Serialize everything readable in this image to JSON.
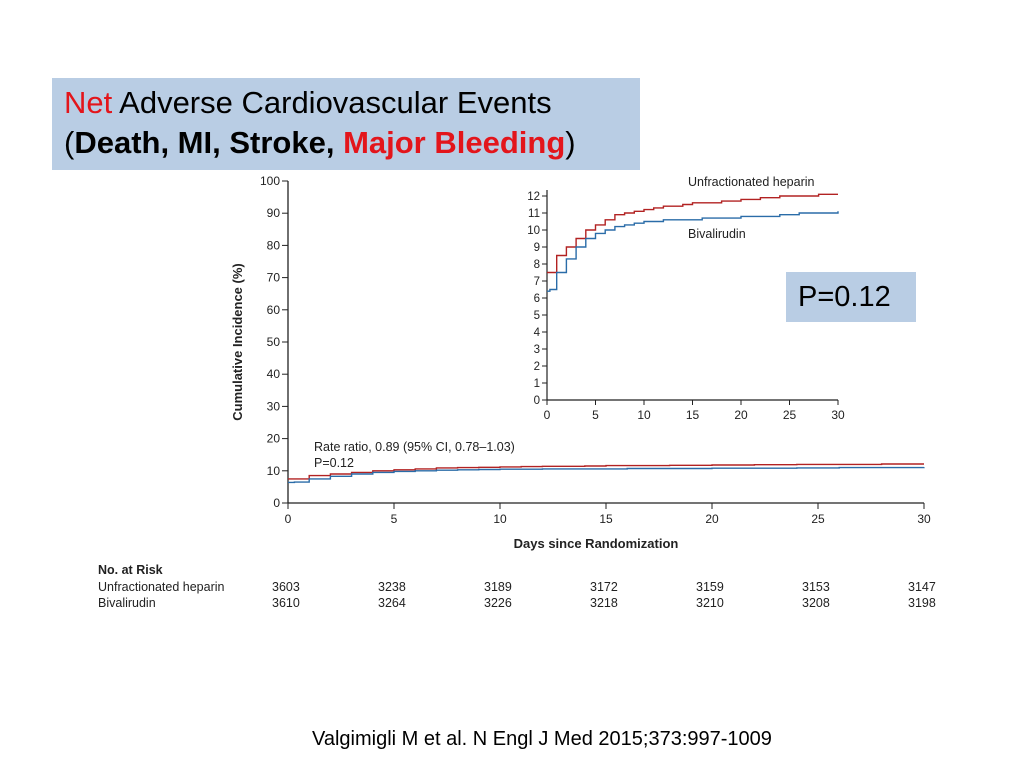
{
  "title": {
    "line1_red": "Net",
    "line1_rest": " Adverse Cardiovascular Events",
    "line2_open": "(",
    "line2_bold": "Death, MI, Stroke, ",
    "line2_red": "Major Bleeding",
    "line2_close": ")"
  },
  "pvalue_box": "P=0.12",
  "citation": "Valgimigli M et al. N Engl J Med 2015;373:997-1009",
  "colors": {
    "heparin": "#b22222",
    "bivalirudin": "#2a6ca8",
    "highlight_box": "#b9cde4",
    "title_red": "#e3151b"
  },
  "chart_data": [
    {
      "type": "line",
      "step": true,
      "xlabel": "Days since Randomization",
      "ylabel": "Cumulative Incidence (%)",
      "xlim": [
        0,
        30
      ],
      "ylim": [
        0,
        100
      ],
      "xticks": [
        0,
        5,
        10,
        15,
        20,
        25,
        30
      ],
      "yticks": [
        0,
        10,
        20,
        30,
        40,
        50,
        60,
        70,
        80,
        90,
        100
      ],
      "annotation": [
        "Rate ratio, 0.89 (95% CI, 0.78–1.03)",
        "P=0.12"
      ],
      "series": [
        {
          "name": "Unfractionated heparin",
          "color": "#b22222",
          "x": [
            0,
            0.2,
            1,
            2,
            3,
            4,
            5,
            6,
            7,
            8,
            9,
            10,
            11,
            12,
            13,
            14,
            15,
            16,
            18,
            20,
            22,
            24,
            26,
            28,
            30
          ],
          "y": [
            7.5,
            7.5,
            8.5,
            9.0,
            9.5,
            10.0,
            10.3,
            10.6,
            10.9,
            11.0,
            11.1,
            11.2,
            11.3,
            11.4,
            11.4,
            11.5,
            11.6,
            11.6,
            11.7,
            11.8,
            11.9,
            12.0,
            12.0,
            12.1,
            12.1
          ]
        },
        {
          "name": "Bivalirudin",
          "color": "#2a6ca8",
          "x": [
            0,
            0.3,
            1,
            2,
            3,
            4,
            5,
            6,
            7,
            8,
            9,
            10,
            12,
            14,
            16,
            18,
            20,
            22,
            24,
            26,
            28,
            30
          ],
          "y": [
            6.4,
            6.5,
            7.5,
            8.3,
            9.0,
            9.5,
            9.8,
            10.0,
            10.2,
            10.3,
            10.4,
            10.5,
            10.6,
            10.6,
            10.7,
            10.7,
            10.8,
            10.8,
            10.9,
            11.0,
            11.0,
            11.1
          ]
        }
      ],
      "risk_table": {
        "heading": "No. at Risk",
        "days": [
          0,
          5,
          10,
          15,
          20,
          25,
          30
        ],
        "rows": [
          {
            "label": "Unfractionated heparin",
            "values": [
              "3603",
              "3238",
              "3189",
              "3172",
              "3159",
              "3153",
              "3147"
            ]
          },
          {
            "label": "Bivalirudin",
            "values": [
              "3610",
              "3264",
              "3226",
              "3218",
              "3210",
              "3208",
              "3198"
            ]
          }
        ]
      }
    },
    {
      "type": "line",
      "step": true,
      "inset": true,
      "xlim": [
        0,
        30
      ],
      "ylim": [
        0,
        12
      ],
      "xticks": [
        0,
        5,
        10,
        15,
        20,
        25,
        30
      ],
      "yticks": [
        0,
        1,
        2,
        3,
        4,
        5,
        6,
        7,
        8,
        9,
        10,
        11,
        12
      ],
      "series": [
        {
          "name": "Unfractionated heparin",
          "color": "#b22222",
          "x": [
            0,
            0.2,
            1,
            2,
            3,
            4,
            5,
            6,
            7,
            8,
            9,
            10,
            11,
            12,
            13,
            14,
            15,
            16,
            18,
            20,
            22,
            24,
            26,
            28,
            30
          ],
          "y": [
            7.5,
            7.5,
            8.5,
            9.0,
            9.5,
            10.0,
            10.3,
            10.6,
            10.9,
            11.0,
            11.1,
            11.2,
            11.3,
            11.4,
            11.4,
            11.5,
            11.6,
            11.6,
            11.7,
            11.8,
            11.9,
            12.0,
            12.0,
            12.1,
            12.1
          ]
        },
        {
          "name": "Bivalirudin",
          "color": "#2a6ca8",
          "x": [
            0,
            0.3,
            1,
            2,
            3,
            4,
            5,
            6,
            7,
            8,
            9,
            10,
            12,
            14,
            16,
            18,
            20,
            22,
            24,
            26,
            28,
            30
          ],
          "y": [
            6.4,
            6.5,
            7.5,
            8.3,
            9.0,
            9.5,
            9.8,
            10.0,
            10.2,
            10.3,
            10.4,
            10.5,
            10.6,
            10.6,
            10.7,
            10.7,
            10.8,
            10.8,
            10.9,
            11.0,
            11.0,
            11.1
          ]
        }
      ]
    }
  ]
}
